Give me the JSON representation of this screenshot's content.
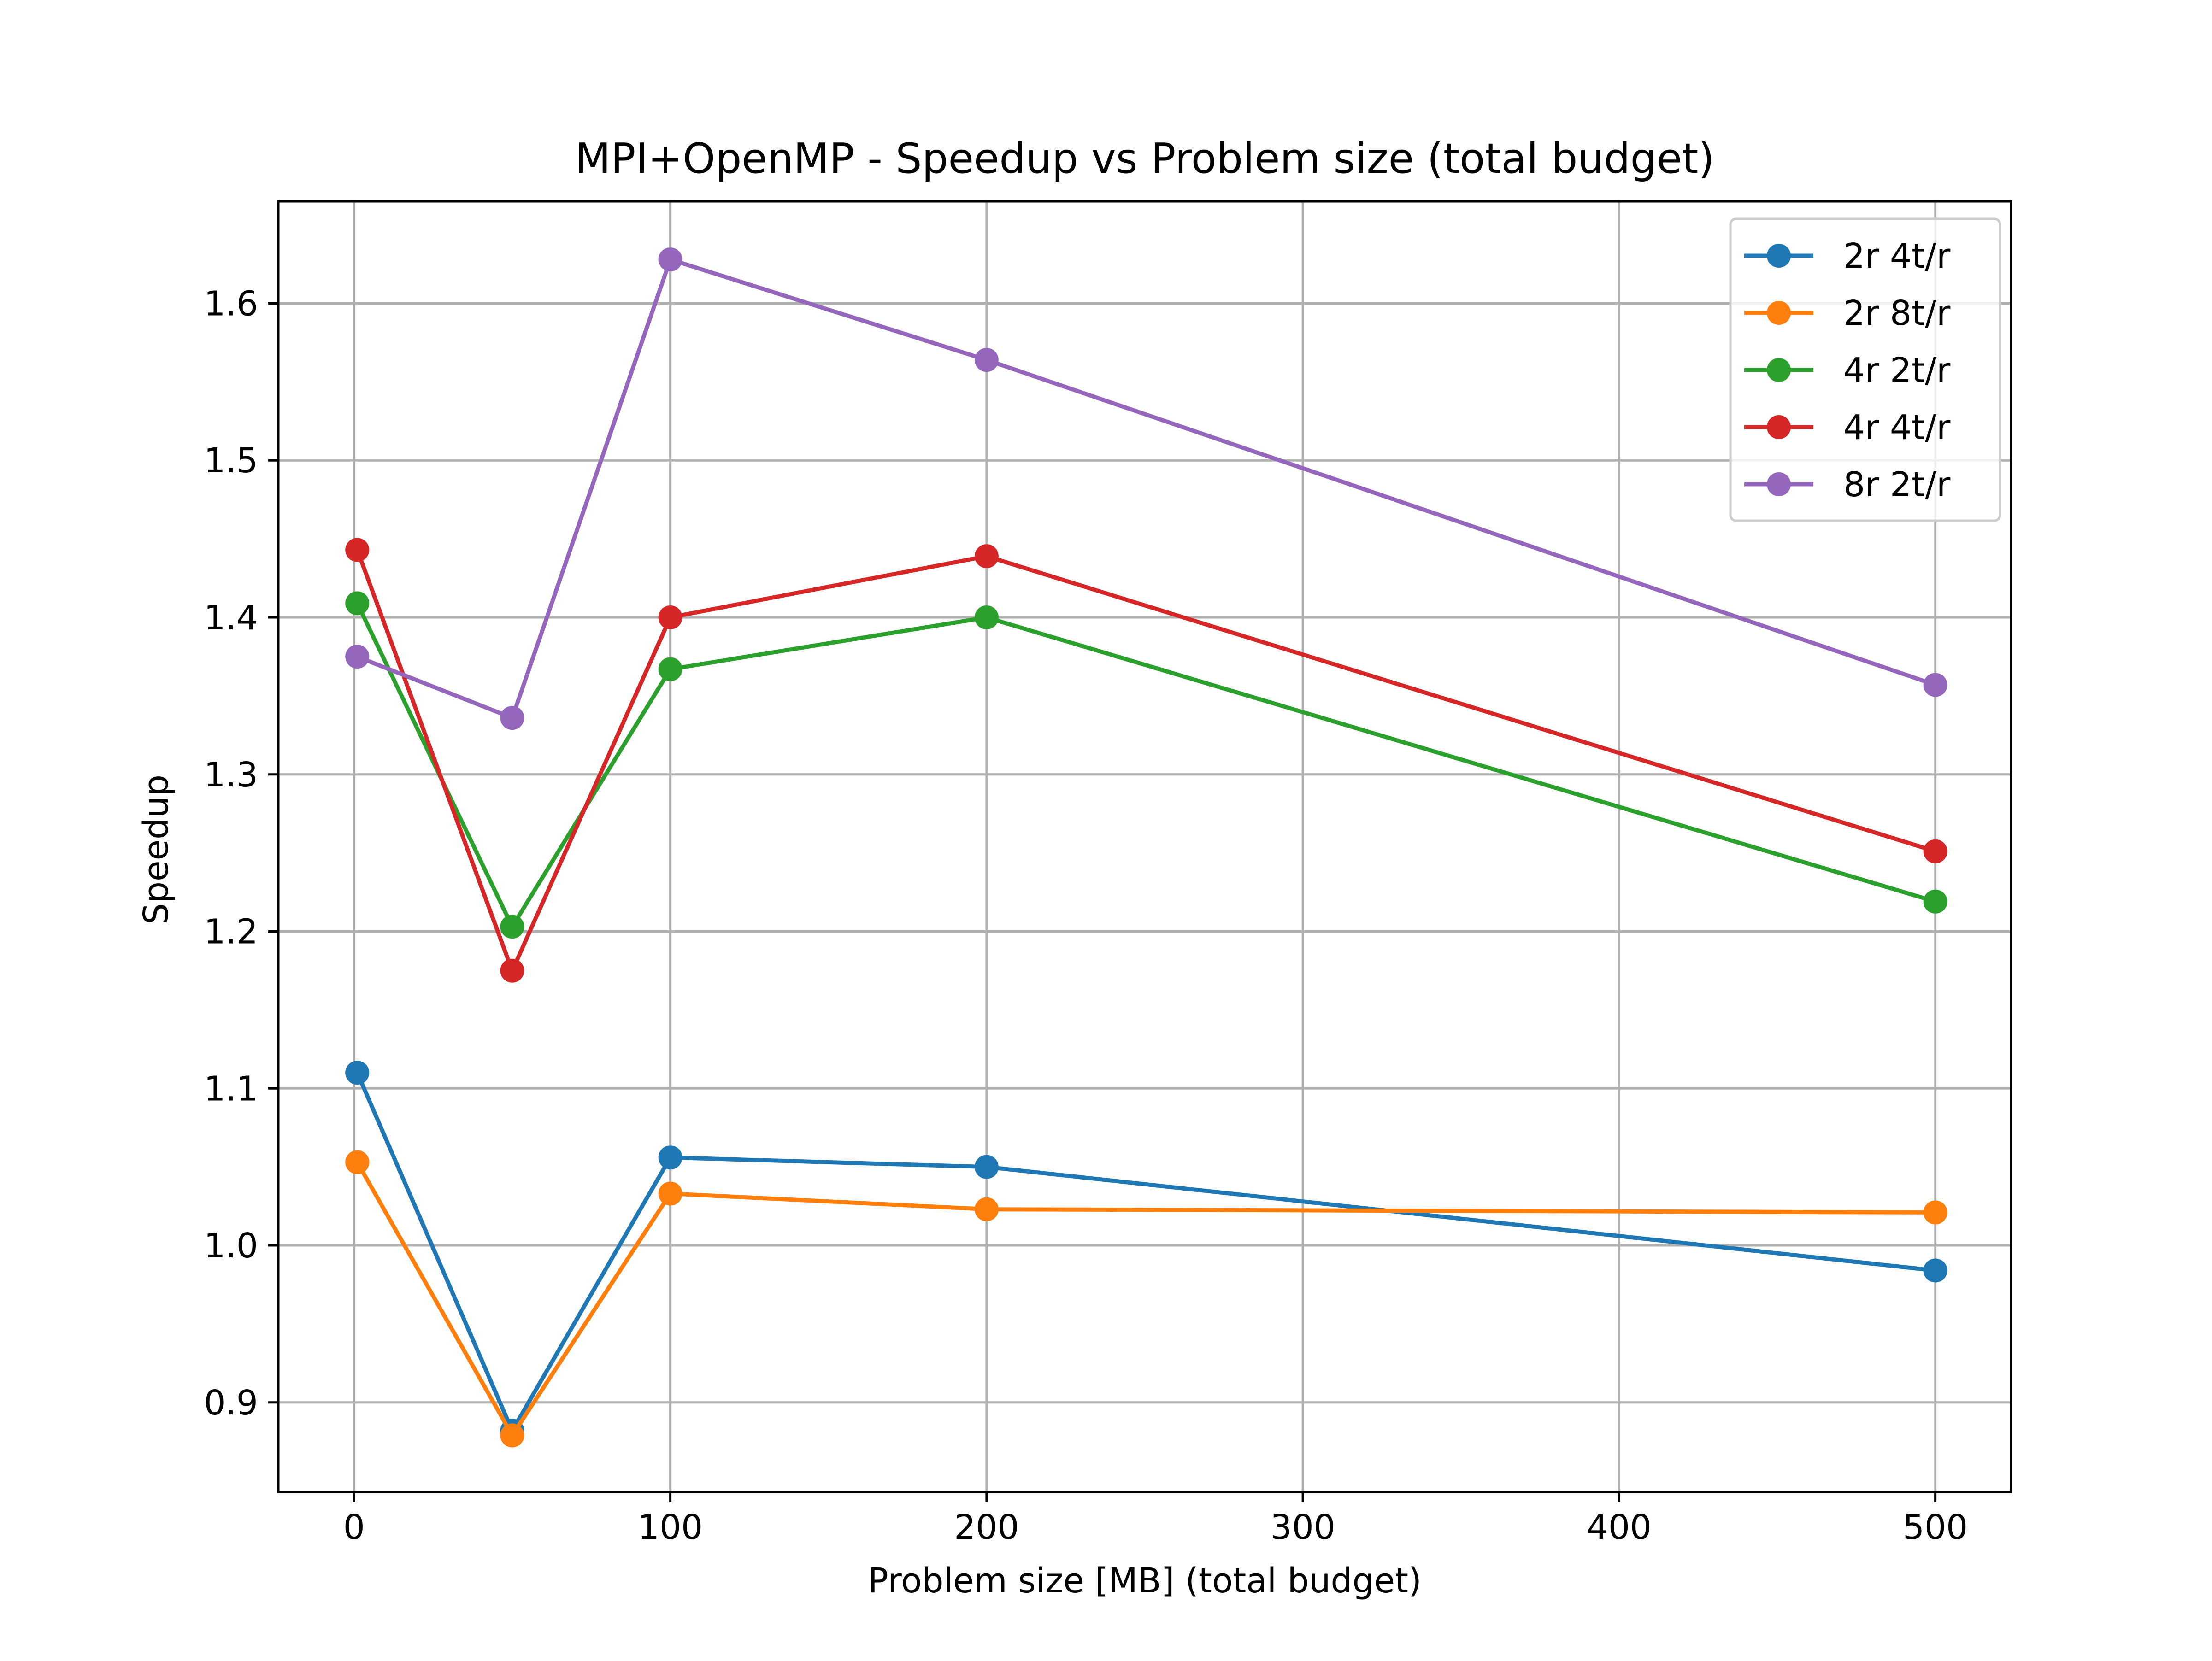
{
  "chart_data": {
    "type": "line",
    "title": "MPI+OpenMP - Speedup vs Problem size (total budget)",
    "xlabel": "Problem size [MB] (total budget)",
    "ylabel": "Speedup",
    "x": [
      1,
      50,
      100,
      200,
      500
    ],
    "xlim": [
      -23.95,
      523.95
    ],
    "ylim": [
      0.843,
      1.665
    ],
    "xticks": [
      0,
      100,
      200,
      300,
      400,
      500
    ],
    "yticks": [
      0.9,
      1.0,
      1.1,
      1.2,
      1.3,
      1.4,
      1.5,
      1.6
    ],
    "xtick_labels": [
      "0",
      "100",
      "200",
      "300",
      "400",
      "500"
    ],
    "ytick_labels": [
      "0.9",
      "1.0",
      "1.1",
      "1.2",
      "1.3",
      "1.4",
      "1.5",
      "1.6"
    ],
    "grid": true,
    "legend_position": "top-right",
    "series": [
      {
        "name": "2r 4t/r",
        "color": "#1f77b4",
        "values": [
          1.11,
          0.882,
          1.056,
          1.05,
          0.984
        ]
      },
      {
        "name": "2r 8t/r",
        "color": "#ff7f0e",
        "values": [
          1.053,
          0.879,
          1.033,
          1.023,
          1.021
        ]
      },
      {
        "name": "4r 2t/r",
        "color": "#2ca02c",
        "values": [
          1.409,
          1.203,
          1.367,
          1.4,
          1.219
        ]
      },
      {
        "name": "4r 4t/r",
        "color": "#d62728",
        "values": [
          1.443,
          1.175,
          1.4,
          1.439,
          1.251
        ]
      },
      {
        "name": "8r 2t/r",
        "color": "#9467bd",
        "values": [
          1.375,
          1.336,
          1.628,
          1.564,
          1.357
        ]
      }
    ]
  }
}
